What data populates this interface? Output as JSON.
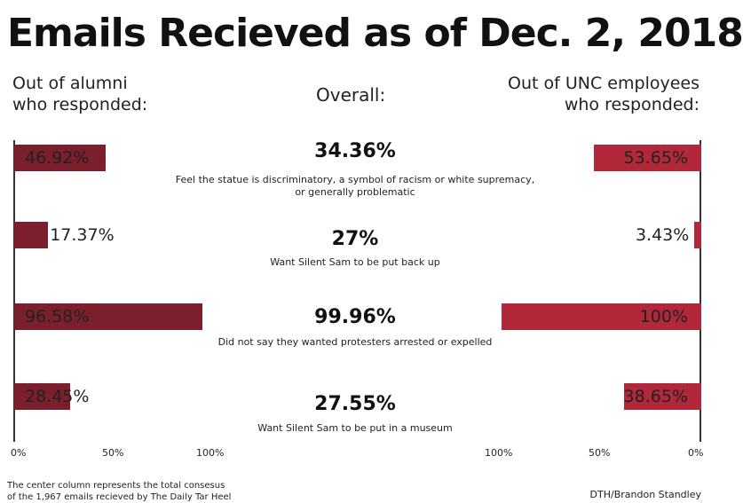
{
  "title": "Emails Recieved as of Dec. 2, 2018",
  "headers": {
    "left_line1": "Out of alumni",
    "left_line2": "who responded:",
    "center": "Overall:",
    "right_line1": "Out of UNC employees",
    "right_line2": "who responded:"
  },
  "colors": {
    "alumni_bar": "#7a1f2b",
    "employee_bar": "#b0283a"
  },
  "chart_data": {
    "type": "bar",
    "title": "Emails Recieved as of Dec. 2, 2018",
    "categories": [
      "Feel the statue is discriminatory, a symbol of racism or white supremacy, or generally problematic",
      "Want Silent Sam to be put back up",
      "Did not say they wanted protesters arrested or expelled",
      "Want Silent Sam to be put in a museum"
    ],
    "series": [
      {
        "name": "Out of alumni who responded",
        "values": [
          46.92,
          17.37,
          96.58,
          28.45
        ],
        "labels": [
          "46.92%",
          "17.37%",
          "96.58%",
          "28.45%"
        ],
        "direction": "left-to-right"
      },
      {
        "name": "Overall",
        "values": [
          34.36,
          27,
          99.96,
          27.55
        ],
        "labels": [
          "34.36%",
          "27%",
          "99.96%",
          "27.55%"
        ]
      },
      {
        "name": "Out of UNC employees who responded",
        "values": [
          53.65,
          3.43,
          100,
          38.65
        ],
        "labels": [
          "53.65%",
          "3.43%",
          "100%",
          "38.65%"
        ],
        "direction": "right-to-left"
      }
    ],
    "description_lines": [
      [
        "Feel the statue is discriminatory, a symbol of racism or white supremacy,",
        "or generally problematic"
      ],
      [
        "Want Silent Sam to be put back up"
      ],
      [
        "Did not say they wanted protesters arrested or expelled"
      ],
      [
        "Want Silent Sam to be put in a museum"
      ]
    ],
    "left_axis_ticks": [
      "0%",
      "50%",
      "100%"
    ],
    "right_axis_ticks": [
      "100%",
      "50%",
      "0%"
    ],
    "xlim": [
      0,
      100
    ]
  },
  "footnote_line1": "The center column represents the total consesus",
  "footnote_line2": "of the 1,967 emails recieved by The Daily Tar Heel",
  "credit": "DTH/Brandon Standley"
}
